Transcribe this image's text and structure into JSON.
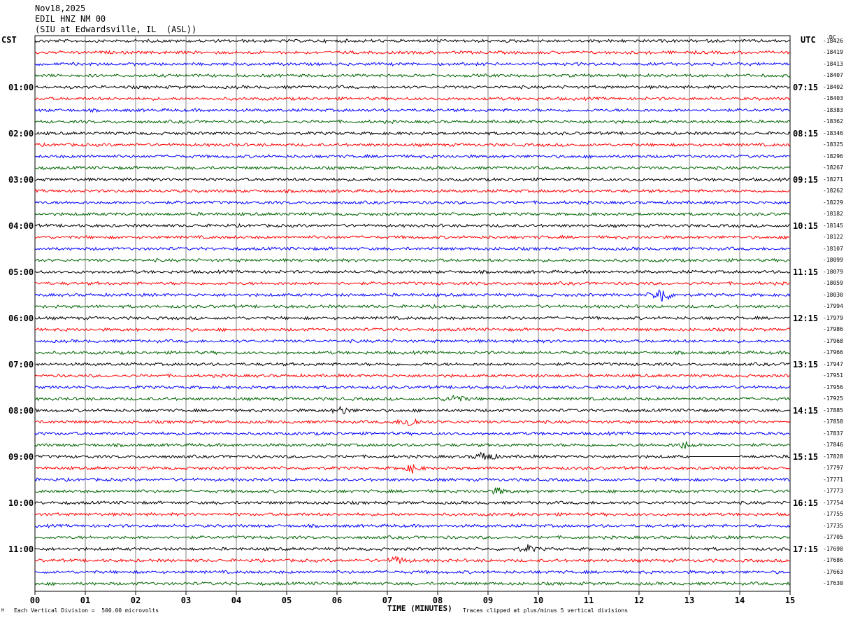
{
  "header": {
    "date": "Nov18,2025",
    "channel": "EDIL HNZ NM 00",
    "location": "(SIU at Edwardsville, IL  (ASL))"
  },
  "left_tz": "CST",
  "right_tz": "UTC",
  "dc_label": "DC",
  "footer": {
    "scale_note": "Each Vertical Division =  500.00 microvolts",
    "xlabel": "TIME (MINUTES)",
    "clip_note": "Traces clipped at plus/minus 5 vertical divisions",
    "corner_mark": "M"
  },
  "colors": {
    "cycle": [
      "#000000",
      "#ff0000",
      "#0000ff",
      "#006400"
    ],
    "grid": "#808080"
  },
  "chart_data": {
    "type": "line",
    "title": "EDIL HNZ NM 00",
    "xlabel": "TIME (MINUTES)",
    "xlim": [
      0,
      15
    ],
    "x_ticks": [
      "00",
      "01",
      "02",
      "03",
      "04",
      "05",
      "06",
      "07",
      "08",
      "09",
      "10",
      "11",
      "12",
      "13",
      "14",
      "15"
    ],
    "left_hour_labels": [
      "01:00",
      "02:00",
      "03:00",
      "04:00",
      "05:00",
      "06:00",
      "07:00",
      "08:00",
      "09:00",
      "10:00",
      "11:00"
    ],
    "right_hour_labels": [
      "07:15",
      "08:15",
      "09:15",
      "10:15",
      "11:15",
      "12:15",
      "13:15",
      "14:15",
      "15:15",
      "16:15",
      "17:15"
    ],
    "num_traces": 48,
    "trace_minutes": 15,
    "dc_offsets": [
      "-18426",
      "-18419",
      "-18413",
      "-18407",
      "-18402",
      "-18403",
      "-18383",
      "-18362",
      "-18346",
      "-18325",
      "-18296",
      "-18267",
      "-18271",
      "-18262",
      "-18229",
      "-18182",
      "-18145",
      "-18122",
      "-18107",
      "-18099",
      "-18079",
      "-18059",
      "-18030",
      "-17994",
      "-17979",
      "-17986",
      "-17968",
      "-17966",
      "-17947",
      "-17951",
      "-17956",
      "-17925",
      "-17885",
      "-17858",
      "-17837",
      "-17846",
      "-17828",
      "-17797",
      "-17771",
      "-17773",
      "-17754",
      "-17755",
      "-17735",
      "-17705",
      "-17690",
      "-17686",
      "-17663",
      "-17630"
    ],
    "events": [
      {
        "trace": 22,
        "minute": 12.45,
        "amp": 14
      },
      {
        "trace": 31,
        "minute": 8.35,
        "amp": 7
      },
      {
        "trace": 33,
        "minute": 7.45,
        "amp": 9
      },
      {
        "trace": 36,
        "minute": 8.95,
        "amp": 10
      },
      {
        "trace": 32,
        "minute": 6.1,
        "amp": 6
      },
      {
        "trace": 37,
        "minute": 7.5,
        "amp": 6
      },
      {
        "trace": 44,
        "minute": 9.8,
        "amp": 5
      },
      {
        "trace": 45,
        "minute": 7.2,
        "amp": 6
      },
      {
        "trace": 35,
        "minute": 12.9,
        "amp": 5
      },
      {
        "trace": 39,
        "minute": 9.2,
        "amp": 5
      }
    ],
    "flat_segment": {
      "trace": 36,
      "from_minute": 13.0,
      "to_minute": 14.0
    }
  }
}
